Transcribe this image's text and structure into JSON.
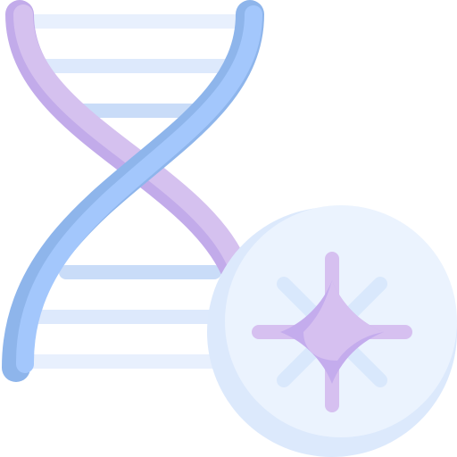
{
  "icon": {
    "name": "dna-cell-icon",
    "colors": {
      "background": "#ffffff",
      "rung_light": "#e8f0fd",
      "rung_mid": "#c9dcf8",
      "strand_purple": "#d5c1ef",
      "strand_purple_shadow": "#c2abea",
      "strand_blue": "#a3c7fc",
      "strand_blue_shadow": "#8eb5eb",
      "disc_face": "#ebf3fe",
      "disc_shadow": "#dce9fc",
      "spike_purple": "#d6c0f0",
      "spike_blue": "#d9e8fc",
      "center_purple": "#d6c0f0",
      "center_shadow": "#c4aced"
    }
  }
}
